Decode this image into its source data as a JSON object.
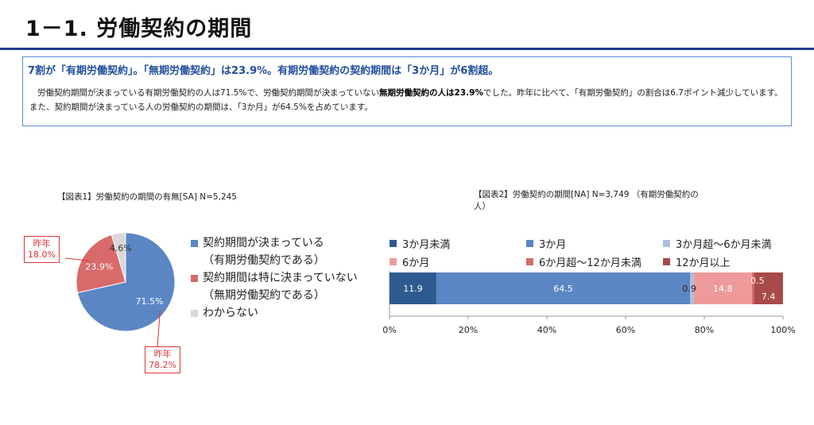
{
  "page_title": "1－1. 労働契約の期間",
  "summary": {
    "headline": "7割が「有期労働契約」。「無期労働契約」は23.9%。有期労働契約の契約期間は「3か月」が6割超。",
    "body_part1": "労働契約期間が決まっている有期労働契約の人は71.5%で、労働契約期間が決まっていない",
    "body_bold": "無期労働契約の人は23.9%",
    "body_part2": "でした。昨年に比べて、「有期労働契約」の割合は6.7ポイント減少しています。 また、契約期間が決まっている人の労働契約の期間は、「3か月」が64.5%を占めています。"
  },
  "colors": {
    "accent": "#1f3a93",
    "box_border": "#5b8fd6",
    "note_red": "#e0343a"
  },
  "chart_data": [
    {
      "type": "pie",
      "title": "【図表1】労働契約の期間の有無[SA]  N=5,245",
      "slices": [
        {
          "label": "契約期間が決まっている",
          "sublabel": "（有期労働契約である）",
          "value": 71.5,
          "value_label": "71.5%",
          "color": "#5b86c4"
        },
        {
          "label": "契約期間は特に決まっていない",
          "sublabel": "（無期労働契約である）",
          "value": 23.9,
          "value_label": "23.9%",
          "color": "#d86a6a"
        },
        {
          "label": "わからない",
          "sublabel": "",
          "value": 4.6,
          "value_label": "4.6%",
          "color": "#d8d8d8"
        }
      ],
      "annotations": [
        {
          "text": "昨年\n18.0%",
          "applies_to": "契約期間は特に決まっていない"
        },
        {
          "text": "昨年\n78.2%",
          "applies_to": "契約期間が決まっている"
        }
      ]
    },
    {
      "type": "bar",
      "orientation": "horizontal-stacked",
      "title_line1": "【図表2】労働契約の期間[NA]  N=3,749  （有期労働契約の",
      "title_line2": "人）",
      "xlim": [
        0,
        100
      ],
      "ticks": [
        "0%",
        "20%",
        "40%",
        "60%",
        "80%",
        "100%"
      ],
      "series": [
        {
          "name": "3か月未満",
          "value": 11.9,
          "color": "#2e5a8f"
        },
        {
          "name": "3か月",
          "value": 64.5,
          "color": "#5b86c4"
        },
        {
          "name": "3か月超～6か月未満",
          "value": 0.9,
          "color": "#a9c0e0"
        },
        {
          "name": "6か月",
          "value": 14.8,
          "color": "#ef9a9a"
        },
        {
          "name": "6か月超～12か月未満",
          "value": 0.5,
          "color": "#d86a6a"
        },
        {
          "name": "12か月以上",
          "value": 7.4,
          "color": "#a84a4a"
        }
      ]
    }
  ]
}
